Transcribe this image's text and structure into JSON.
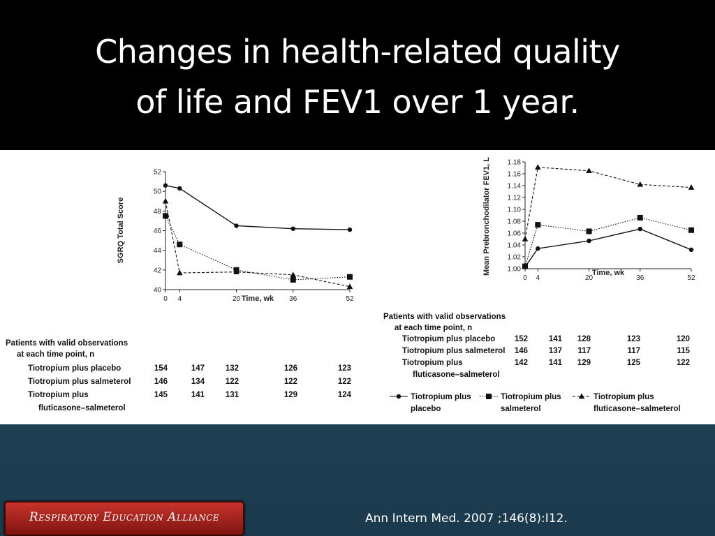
{
  "title_line1": "Changes in health-related quality",
  "title_line2": "of life and FEV1 over 1 year.",
  "citation": "Ann Intern Med. 2007 ;146(8):I12.",
  "logo_text": "Respiratory Education Alliance",
  "colors": {
    "header_bg": "#000000",
    "slide_bg": "#1f4257",
    "logo_red": "#b52a23"
  },
  "chart_data": [
    {
      "type": "line",
      "xlabel": "Time, wk",
      "ylabel": "SGRQ Total Score",
      "x": [
        0,
        4,
        20,
        36,
        52
      ],
      "x_ticks": [
        "0",
        "4",
        "20",
        "36",
        "52"
      ],
      "ylim": [
        40,
        52
      ],
      "y_ticks": [
        "40",
        "42",
        "44",
        "46",
        "48",
        "50",
        "52"
      ],
      "series": [
        {
          "name": "Tiotropium plus placebo",
          "marker": "circle",
          "line": "solid",
          "values": [
            50.6,
            50.3,
            46.5,
            46.2,
            46.1
          ]
        },
        {
          "name": "Tiotropium plus salmeterol",
          "marker": "square",
          "line": "dotted",
          "values": [
            47.5,
            44.6,
            42.0,
            41.0,
            41.3
          ]
        },
        {
          "name": "Tiotropium plus fluticasone–salmeterol",
          "marker": "triangle",
          "line": "dashed",
          "values": [
            49.0,
            41.7,
            41.8,
            41.5,
            40.3
          ]
        }
      ],
      "table": {
        "header_line1": "Patients with valid observations",
        "header_line2": "at each time point, n",
        "rows": [
          {
            "label": "Tiotropium plus placebo",
            "values": [
              "154",
              "147",
              "132",
              "126",
              "123"
            ]
          },
          {
            "label": "Tiotropium plus salmeterol",
            "values": [
              "146",
              "134",
              "122",
              "122",
              "122"
            ]
          },
          {
            "label": "Tiotropium plus",
            "label2": "fluticasone–salmeterol",
            "values": [
              "145",
              "141",
              "131",
              "129",
              "124"
            ]
          }
        ]
      }
    },
    {
      "type": "line",
      "xlabel": "Time, wk",
      "ylabel": "Mean Prebronchodilator FEV1, L",
      "x": [
        0,
        4,
        20,
        36,
        52
      ],
      "x_ticks": [
        "0",
        "4",
        "20",
        "36",
        "52"
      ],
      "ylim": [
        1.0,
        1.18
      ],
      "y_ticks": [
        "1.00",
        "1.02",
        "1.04",
        "1.06",
        "1.08",
        "1.10",
        "1.12",
        "1.14",
        "1.16",
        "1.18"
      ],
      "series": [
        {
          "name": "Tiotropium plus placebo",
          "marker": "circle",
          "line": "solid",
          "values": [
            1.003,
            1.034,
            1.047,
            1.067,
            1.032
          ]
        },
        {
          "name": "Tiotropium plus salmeterol",
          "marker": "square",
          "line": "dotted",
          "values": [
            1.004,
            1.074,
            1.063,
            1.086,
            1.065
          ]
        },
        {
          "name": "Tiotropium plus fluticasone–salmeterol",
          "marker": "triangle",
          "line": "dashed",
          "values": [
            1.05,
            1.171,
            1.165,
            1.142,
            1.137
          ]
        }
      ],
      "table": {
        "header_line1": "Patients with valid observations",
        "header_line2": "at each time point, n",
        "rows": [
          {
            "label": "Tiotropium plus placebo",
            "values": [
              "152",
              "141",
              "128",
              "123",
              "120"
            ]
          },
          {
            "label": "Tiotropium plus salmeterol",
            "values": [
              "146",
              "137",
              "117",
              "117",
              "115"
            ]
          },
          {
            "label": "Tiotropium plus",
            "label2": "fluticasone–salmeterol",
            "values": [
              "142",
              "141",
              "129",
              "125",
              "122"
            ]
          }
        ]
      },
      "legend": [
        {
          "line1": "Tiotropium plus",
          "line2": "placebo",
          "marker": "circle",
          "line": "solid"
        },
        {
          "line1": "Tiotropium plus",
          "line2": "salmeterol",
          "marker": "square",
          "line": "dotted"
        },
        {
          "line1": "Tiotropium plus",
          "line2": "fluticasone–salmeterol",
          "marker": "triangle",
          "line": "dashed"
        }
      ]
    }
  ]
}
